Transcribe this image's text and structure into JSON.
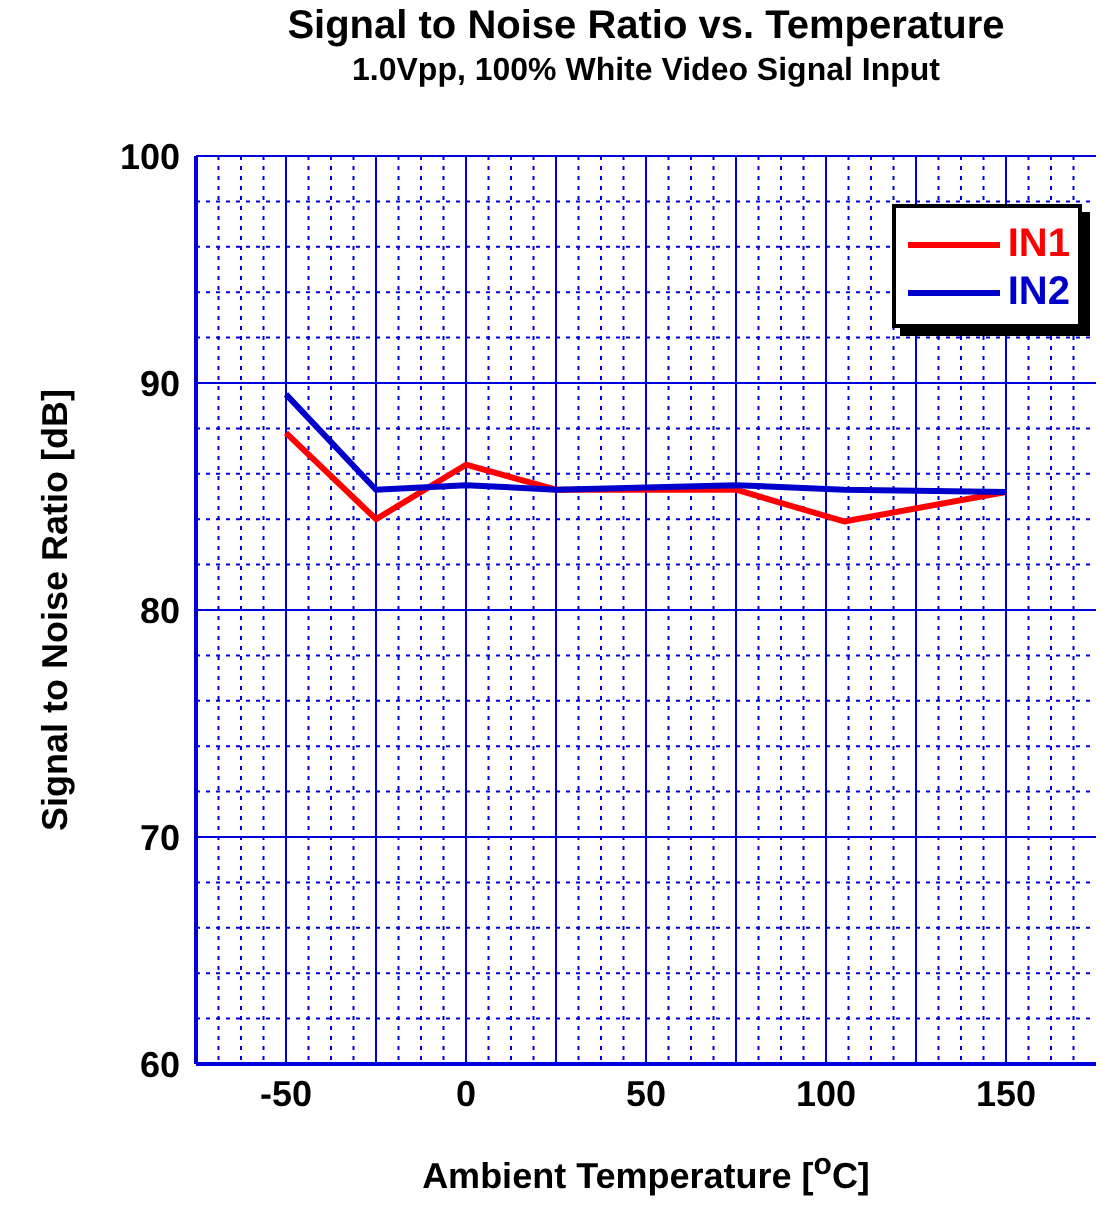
{
  "chart_data": {
    "type": "line",
    "title": "Signal to Noise Ratio vs. Temperature",
    "subtitle": "1.0Vpp, 100% White Video Signal Input",
    "xlabel": "Ambient Temperature [$^{o}$C]",
    "ylabel": "Signal to Noise Ratio [dB]",
    "x": [
      -50,
      -25,
      0,
      25,
      75,
      105,
      150
    ],
    "series": [
      {
        "name": "IN1",
        "color": "#ff0000",
        "values": [
          87.8,
          84.0,
          86.4,
          85.3,
          85.3,
          83.9,
          85.2
        ]
      },
      {
        "name": "IN2",
        "color": "#0000cc",
        "values": [
          89.5,
          85.3,
          85.5,
          85.3,
          85.5,
          85.3,
          85.2
        ]
      }
    ],
    "xlim": [
      -75,
      175
    ],
    "xticks": [
      {
        "value": -68.75,
        "label": null
      },
      {
        "value": -62.5,
        "label": null
      },
      {
        "value": -56.25,
        "label": null
      },
      -50,
      {
        "value": -43.75,
        "label": null
      },
      {
        "value": -37.5,
        "label": null
      },
      {
        "value": -31.25,
        "label": null
      },
      {
        "value": -25,
        "label": null
      },
      {
        "value": -18.75,
        "label": null
      },
      {
        "value": -12.5,
        "label": null
      },
      {
        "value": -6.25,
        "label": null
      },
      0,
      {
        "value": 6.25,
        "label": null
      },
      {
        "value": 12.5,
        "label": null
      },
      {
        "value": 18.75,
        "label": null
      },
      {
        "value": 25,
        "label": null
      },
      {
        "value": 31.25,
        "label": null
      },
      {
        "value": 37.5,
        "label": null
      },
      {
        "value": 43.75,
        "label": null
      },
      50,
      {
        "value": 56.25,
        "label": null
      },
      {
        "value": 62.5,
        "label": null
      },
      {
        "value": 68.75,
        "label": null
      },
      {
        "value": 75,
        "label": null
      },
      {
        "value": 81.25,
        "label": null
      },
      {
        "value": 87.5,
        "label": null
      },
      {
        "value": 93.75,
        "label": null
      },
      100,
      {
        "value": 106.25,
        "label": null
      },
      {
        "value": 112.5,
        "label": null
      },
      {
        "value": 118.75,
        "label": null
      },
      {
        "value": 125,
        "label": null
      },
      {
        "value": 131.25,
        "label": null
      },
      {
        "value": 137.5,
        "label": null
      },
      {
        "value": 143.75,
        "label": null
      },
      150,
      {
        "value": 156.25,
        "label": null
      },
      {
        "value": 162.5,
        "label": null
      },
      {
        "value": 168.75,
        "label": null
      }
    ],
    "ylim": [
      60,
      100
    ],
    "yticks": [
      60,
      {
        "value": 62,
        "label": null
      },
      {
        "value": 64,
        "label": null
      },
      {
        "value": 66,
        "label": null
      },
      {
        "value": 68,
        "label": null
      },
      70,
      {
        "value": 72,
        "label": null
      },
      {
        "value": 74,
        "label": null
      },
      {
        "value": 76,
        "label": null
      },
      {
        "value": 78,
        "label": null
      },
      80,
      {
        "value": 82,
        "label": null
      },
      {
        "value": 84,
        "label": null
      },
      {
        "value": 86,
        "label": null
      },
      {
        "value": 88,
        "label": null
      },
      90,
      {
        "value": 92,
        "label": null
      },
      {
        "value": 94,
        "label": null
      },
      {
        "value": 96,
        "label": null
      },
      {
        "value": 98,
        "label": null
      },
      100
    ],
    "grid": true,
    "legend": "top right",
    "marker": "none",
    "line_style": "solid"
  }
}
